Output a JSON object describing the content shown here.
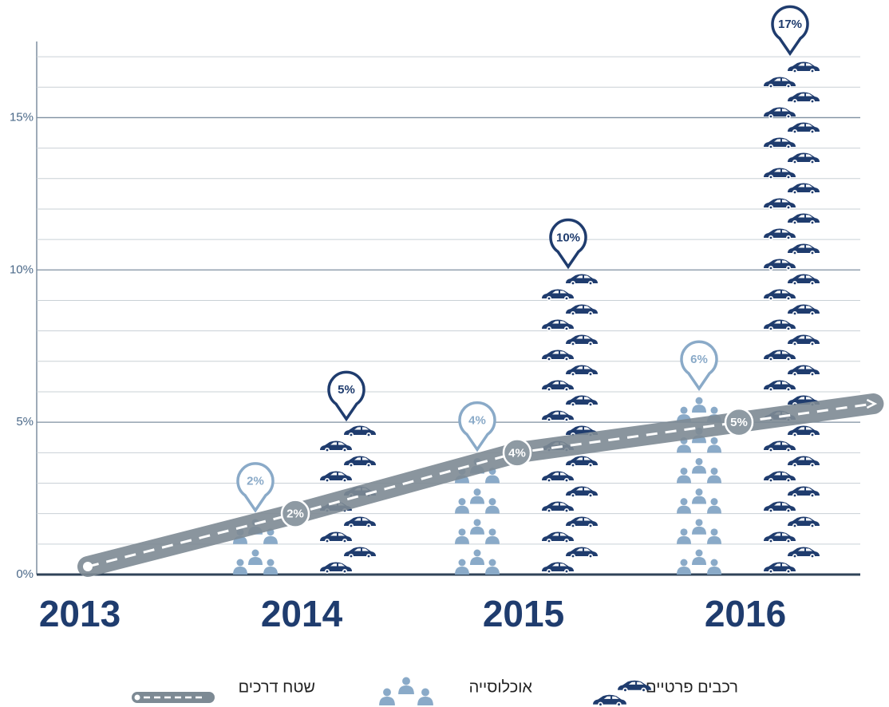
{
  "chart_data": {
    "type": "pictogram",
    "categories": [
      "2013",
      "2014",
      "2015",
      "2016"
    ],
    "series": [
      {
        "name": "רכבים פרטיים",
        "color": "#1f3c6e",
        "values": [
          null,
          5,
          10,
          17
        ],
        "value_labels": [
          null,
          "5%",
          "10%",
          "17%"
        ]
      },
      {
        "name": "אוכלוסייה",
        "color": "#8aaac8",
        "values": [
          null,
          2,
          4,
          6
        ],
        "value_labels": [
          null,
          "2%",
          "4%",
          "6%"
        ]
      },
      {
        "name": "שטח דרכים",
        "color": "#7d8a94",
        "values": [
          0,
          2,
          4,
          5
        ],
        "value_labels": [
          null,
          "2%",
          "4%",
          "5%"
        ]
      }
    ],
    "ylim": [
      0,
      17.5
    ],
    "yticks": [
      {
        "value": 0,
        "label": "0%"
      },
      {
        "value": 5,
        "label": "5%"
      },
      {
        "value": 10,
        "label": "10%"
      },
      {
        "value": 15,
        "label": "15%"
      }
    ],
    "minor_yticks": [
      1,
      2,
      3,
      4,
      6,
      7,
      8,
      9,
      11,
      12,
      13,
      14,
      16,
      17
    ],
    "grid": true
  }
}
